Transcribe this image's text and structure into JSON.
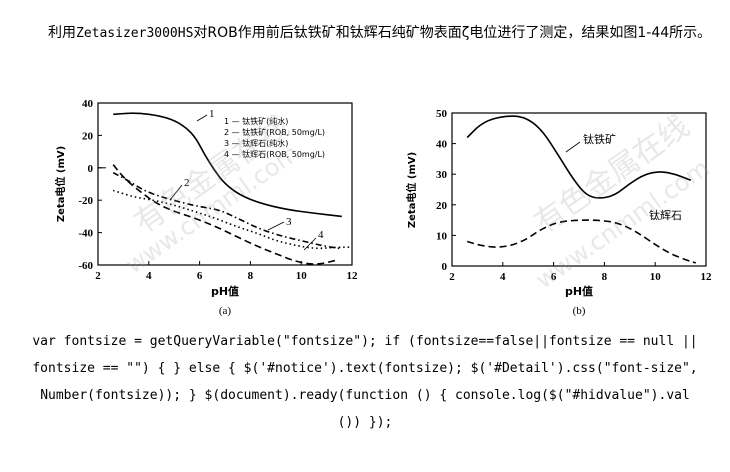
{
  "intro": {
    "part1": "利用",
    "instrument": "Zetasizer3000HS",
    "part2": "对ROB作用前后钛铁矿和钛辉石纯矿物表面ζ电位进行了测定，结果如图1-44所示。"
  },
  "watermarks": [
    "有色金属在线",
    "www.cnmml.com",
    "有色金属在线",
    "www.cnmml.com"
  ],
  "chart_data": [
    {
      "type": "line",
      "panel_label": "(a)",
      "xlabel": "pH值",
      "ylabel": "Zeta电位 (mV)",
      "xlim": [
        2,
        12
      ],
      "ylim": [
        -60,
        40
      ],
      "xticks": [
        "2",
        "4",
        "6",
        "8",
        "10",
        "12"
      ],
      "yticks": [
        "40",
        "20",
        "0",
        "-20",
        "-40",
        "-60"
      ],
      "grid": false,
      "legend_position": "top-right",
      "series": [
        {
          "name": "1",
          "legend": "1 — 钛铁矿(纯水)",
          "style": "solid",
          "x": [
            2.6,
            3.5,
            4.5,
            5.2,
            5.8,
            6.2,
            6.6,
            7.0,
            7.6,
            8.4,
            9.5,
            10.5,
            11.6
          ],
          "y": [
            33,
            34,
            32,
            28,
            20,
            8,
            -2,
            -10,
            -17,
            -22,
            -26,
            -28,
            -30
          ]
        },
        {
          "name": "2",
          "legend": "2 — 钛铁矿(ROB, 50mg/L)",
          "style": "dashdot",
          "x": [
            2.6,
            3.2,
            3.8,
            4.5,
            5.2,
            6.0,
            6.8,
            7.6,
            8.4,
            9.2,
            10.0,
            10.8,
            11.6
          ],
          "y": [
            -3,
            -8,
            -14,
            -18,
            -21,
            -24,
            -26,
            -32,
            -38,
            -42,
            -45,
            -48,
            -50
          ]
        },
        {
          "name": "3",
          "legend": "3 — 钛辉石(纯水)",
          "style": "dotted",
          "x": [
            2.6,
            3.4,
            4.2,
            5.0,
            5.8,
            6.6,
            7.4,
            8.2,
            9.0,
            9.8,
            10.6,
            11.4,
            12.0
          ],
          "y": [
            -14,
            -18,
            -20,
            -23,
            -27,
            -31,
            -36,
            -40,
            -45,
            -48,
            -50,
            -49,
            -49
          ]
        },
        {
          "name": "4",
          "legend": "4 — 钛辉石(ROB, 50mg/L)",
          "style": "dashed",
          "x": [
            2.6,
            3.0,
            3.6,
            4.3,
            5.0,
            5.8,
            6.6,
            7.4,
            8.2,
            9.0,
            9.8,
            10.6,
            11.4
          ],
          "y": [
            2,
            -6,
            -14,
            -22,
            -27,
            -31,
            -36,
            -42,
            -48,
            -53,
            -58,
            -60,
            -57
          ]
        }
      ],
      "annotations": [
        "1",
        "2",
        "3",
        "4"
      ]
    },
    {
      "type": "line",
      "panel_label": "(b)",
      "xlabel": "pH值",
      "ylabel": "Zeta电位 (mV)",
      "xlim": [
        2,
        12
      ],
      "ylim": [
        0,
        50
      ],
      "xticks": [
        "2",
        "4",
        "6",
        "8",
        "10",
        "12"
      ],
      "yticks": [
        "50",
        "40",
        "30",
        "20",
        "10",
        "0"
      ],
      "grid": false,
      "series": [
        {
          "name": "钛铁矿",
          "style": "solid",
          "x": [
            2.6,
            3.2,
            4.0,
            4.8,
            5.5,
            6.2,
            6.8,
            7.3,
            7.8,
            8.4,
            9.0,
            9.6,
            10.2,
            10.8,
            11.4
          ],
          "y": [
            42,
            47,
            49,
            49,
            45,
            36,
            28,
            23,
            22,
            23,
            27,
            30,
            31,
            30,
            28
          ]
        },
        {
          "name": "钛辉石",
          "style": "dashed",
          "x": [
            2.6,
            3.2,
            4.0,
            4.8,
            5.5,
            6.2,
            7.0,
            7.8,
            8.6,
            9.3,
            10.0,
            10.6,
            11.2,
            11.6
          ],
          "y": [
            8,
            6.5,
            6,
            8,
            12,
            14.5,
            15,
            15,
            14,
            11,
            7,
            4,
            2,
            1
          ]
        }
      ]
    }
  ],
  "code_lines": [
    "var fontsize = getQueryVariable(\"fontsize\"); if (fontsize==false||fontsize == null ||",
    "fontsize == \"\") { } else { $('#notice').text(fontsize); $('#Detail').css(\"font-size\",",
    "Number(fontsize)); } $(document).ready(function () { console.log($(\"#hidvalue\").val",
    "()) });"
  ]
}
